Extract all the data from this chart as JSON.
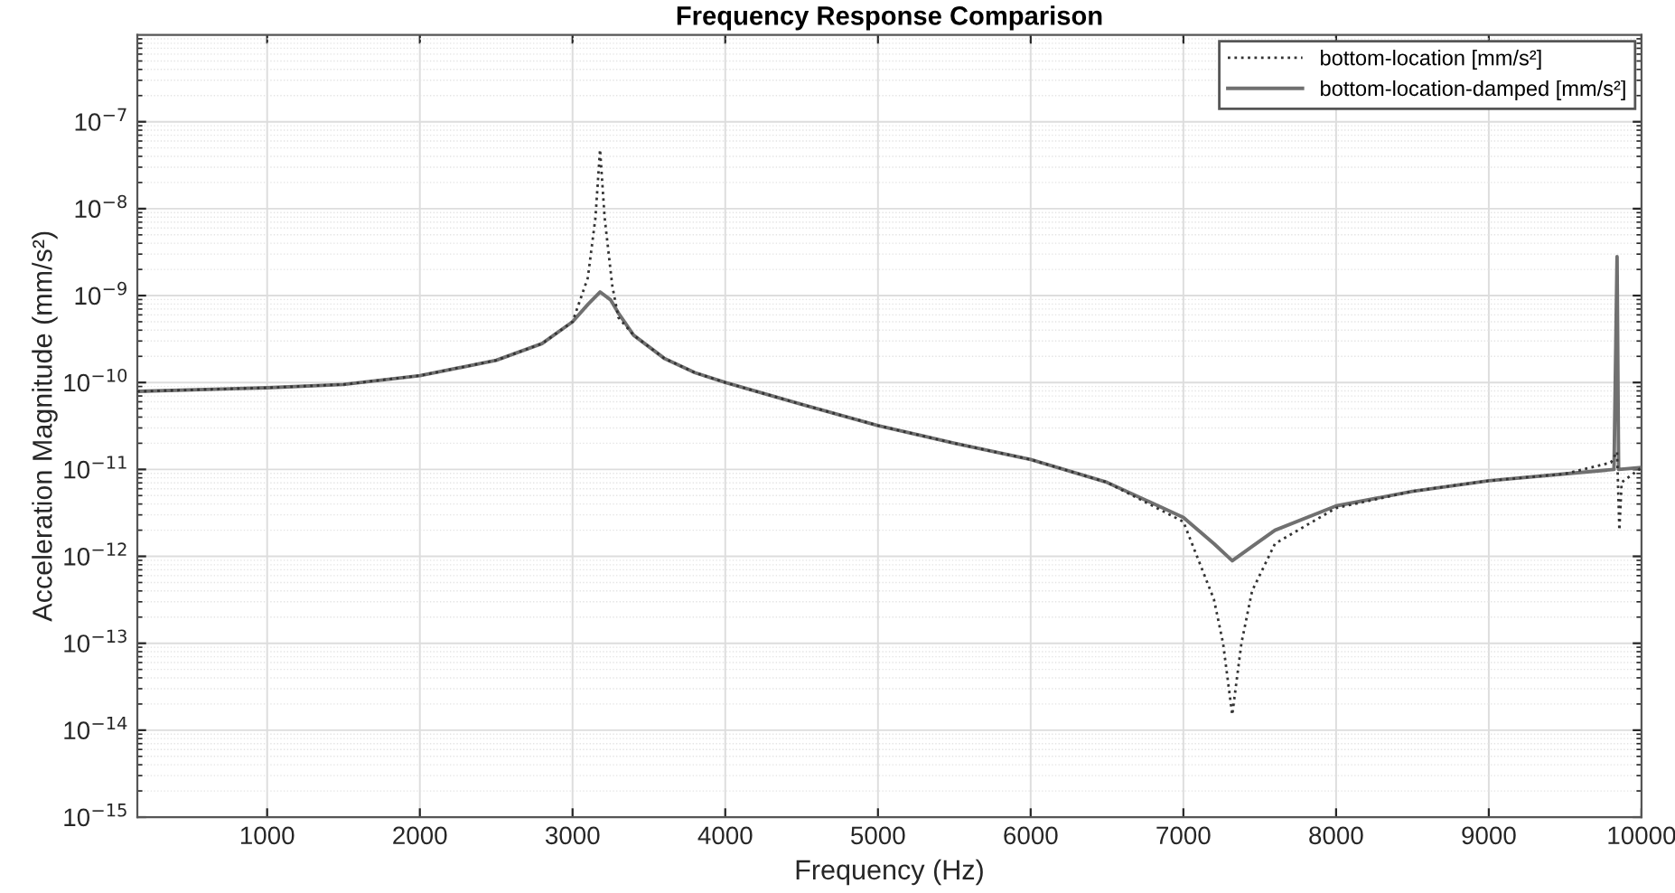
{
  "chart_data": {
    "type": "line",
    "title": "Frequency Response Comparison",
    "xlabel": "Frequency (Hz)",
    "ylabel": "Acceleration Magnitude (mm/s²)",
    "log": "y",
    "grid": true,
    "legend": "top right",
    "xlim": [
      150,
      10000
    ],
    "xticks": [
      1000,
      2000,
      3000,
      4000,
      5000,
      6000,
      7000,
      8000,
      9000,
      10000
    ],
    "ylim": [
      1e-15,
      1e-06
    ],
    "yticks": [
      {
        "value": 1e-15,
        "label": "10$^{−15}$"
      },
      {
        "value": 1e-14,
        "label": "10$^{−14}$"
      },
      {
        "value": 1e-13,
        "label": "10$^{−13}$"
      },
      {
        "value": 1e-12,
        "label": "10$^{−12}$"
      },
      {
        "value": 1e-11,
        "label": "10$^{−11}$"
      },
      {
        "value": 1e-10,
        "label": "10$^{−10}$"
      },
      {
        "value": 1e-09,
        "label": "10$^{−9}$"
      },
      {
        "value": 1e-08,
        "label": "10$^{−8}$"
      },
      {
        "value": 1e-07,
        "label": "10$^{−7}$"
      }
    ],
    "series": [
      {
        "name": "bottom-location [mm/s²]",
        "color": "#333333",
        "line_style": "dotted",
        "x": [
          150,
          1000,
          1500,
          2000,
          2500,
          2800,
          3000,
          3100,
          3150,
          3180,
          3210,
          3260,
          3300,
          3400,
          3600,
          3800,
          4000,
          4500,
          5000,
          5500,
          6000,
          6500,
          7000,
          7200,
          7260,
          7320,
          7380,
          7450,
          7600,
          8000,
          8500,
          9000,
          9500,
          9800,
          9840,
          9855,
          9870,
          10000
        ],
        "values": [
          7.9e-11,
          8.7e-11,
          9.5e-11,
          1.2e-10,
          1.8e-10,
          2.8e-10,
          5e-10,
          1.6e-09,
          7.9e-09,
          4.8e-08,
          7.9e-09,
          1.3e-09,
          5.6e-10,
          3.5e-10,
          1.9e-10,
          1.3e-10,
          1e-10,
          5.6e-11,
          3.2e-11,
          2e-11,
          1.3e-11,
          7.1e-12,
          2.5e-12,
          3.2e-13,
          1e-13,
          1.5e-14,
          1e-13,
          4e-13,
          1.4e-12,
          3.6e-12,
          5.6e-12,
          7.4e-12,
          8.9e-12,
          1.2e-11,
          1.6e-11,
          2e-12,
          7.1e-12,
          1.05e-11
        ]
      },
      {
        "name": "bottom-location-damped [mm/s²]",
        "color": "#707070",
        "line_style": "solid",
        "x": [
          150,
          1000,
          1500,
          2000,
          2500,
          2800,
          3000,
          3100,
          3180,
          3250,
          3300,
          3400,
          3600,
          3800,
          4000,
          4500,
          5000,
          5500,
          6000,
          6500,
          7000,
          7200,
          7320,
          7450,
          7600,
          8000,
          8500,
          9000,
          9500,
          9820,
          9840,
          9850,
          10000
        ],
        "values": [
          7.9e-11,
          8.7e-11,
          9.5e-11,
          1.2e-10,
          1.8e-10,
          2.8e-10,
          5e-10,
          7.9e-10,
          1.1e-09,
          8.9e-10,
          6.3e-10,
          3.5e-10,
          1.9e-10,
          1.3e-10,
          1e-10,
          5.6e-11,
          3.2e-11,
          2e-11,
          1.3e-11,
          7.1e-12,
          2.8e-12,
          1.4e-12,
          8.9e-13,
          1.3e-12,
          2e-12,
          3.8e-12,
          5.6e-12,
          7.4e-12,
          8.9e-12,
          1e-11,
          2.8e-09,
          1e-11,
          1.05e-11
        ]
      }
    ]
  }
}
